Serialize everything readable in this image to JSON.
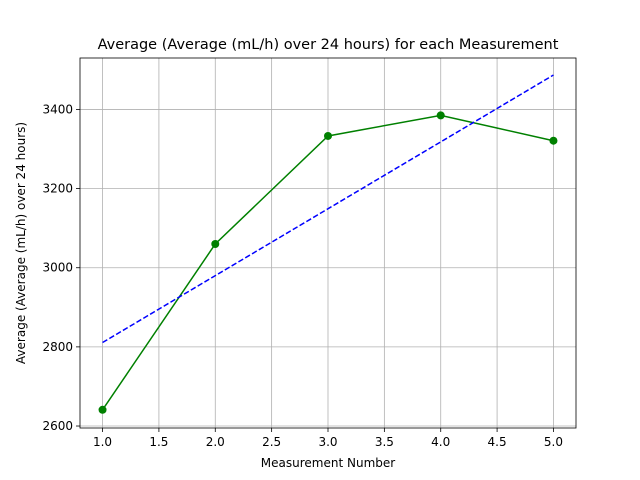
{
  "chart_data": {
    "type": "line",
    "title": "Average (Average (mL/h) over 24 hours) for each Measurement",
    "xlabel": "Measurement Number",
    "ylabel": "Average (Average (mL/h) over 24 hours)",
    "xlim": [
      0.8,
      5.2
    ],
    "ylim": [
      2595,
      3530
    ],
    "x_ticks": [
      1.0,
      1.5,
      2.0,
      2.5,
      3.0,
      3.5,
      4.0,
      4.5,
      5.0
    ],
    "x_tick_labels": [
      "1.0",
      "1.5",
      "2.0",
      "2.5",
      "3.0",
      "3.5",
      "4.0",
      "4.5",
      "5.0"
    ],
    "y_ticks": [
      2600,
      2800,
      3000,
      3200,
      3400
    ],
    "y_tick_labels": [
      "2600",
      "2800",
      "3000",
      "3200",
      "3400"
    ],
    "grid": true,
    "series": [
      {
        "style": "solid-with-markers",
        "color": "#008000",
        "x": [
          1,
          2,
          3,
          4,
          5
        ],
        "values": [
          2641,
          3060,
          3333,
          3385,
          3321
        ]
      },
      {
        "style": "dashed",
        "color": "#0000ff",
        "x": [
          1,
          5
        ],
        "values": [
          2811,
          3487
        ]
      }
    ]
  }
}
